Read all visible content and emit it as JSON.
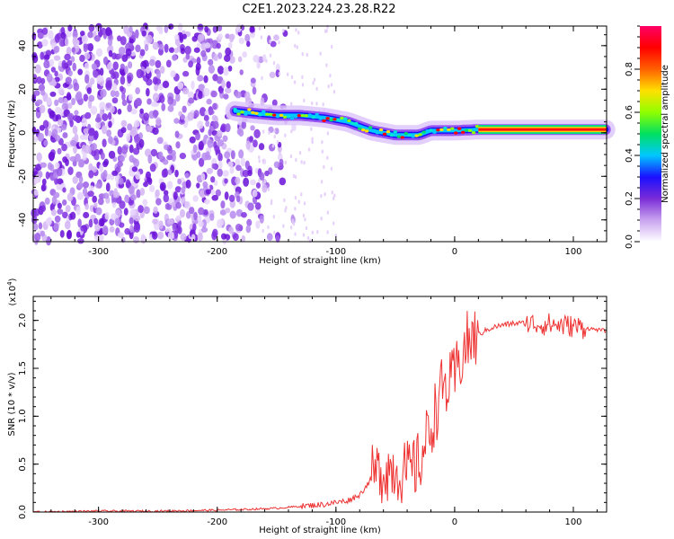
{
  "title": "C2E1.2023.224.23.28.R22",
  "chart_data": [
    {
      "type": "heatmap",
      "xlabel": "Height of straight line (km)",
      "ylabel": "Frequency (Hz)",
      "xlim": [
        -355,
        128
      ],
      "ylim": [
        -50,
        49
      ],
      "xticks": [
        -300,
        -200,
        -100,
        0,
        100
      ],
      "xtick_labels": [
        "-300",
        "-200",
        "-100",
        "0",
        "100"
      ],
      "yticks": [
        -40,
        -20,
        0,
        20,
        40
      ],
      "ytick_labels": [
        "-40",
        "-20",
        "0",
        "20",
        "40"
      ],
      "colorbar": {
        "label": "Normalized spectral amplitude",
        "range": [
          0,
          1
        ],
        "ticks": [
          0.0,
          0.2,
          0.4,
          0.6,
          0.8
        ],
        "tick_labels": [
          "0.0",
          "0.2",
          "0.4",
          "0.6",
          "0.8"
        ],
        "colors": [
          "#ffffff",
          "#c9a3f0",
          "#7a2bd6",
          "#1a10ff",
          "#00c8ff",
          "#00e060",
          "#90ff00",
          "#ffe000",
          "#ff6000",
          "#ff0000",
          "#ff0066"
        ]
      },
      "noise_region_x": [
        -355,
        -165
      ],
      "ridge_line": {
        "x": [
          -185,
          -170,
          -150,
          -130,
          -110,
          -100,
          -90,
          -80,
          -70,
          -60,
          -50,
          -40,
          -30,
          -20,
          -10,
          0,
          20,
          40,
          60,
          80,
          100,
          128
        ],
        "y": [
          10,
          9,
          8,
          8,
          7,
          6,
          5,
          3,
          1,
          0,
          -1,
          -1,
          -1,
          1,
          1,
          1,
          1.5,
          1.5,
          1.5,
          1.5,
          1.5,
          1.5
        ]
      }
    },
    {
      "type": "line",
      "xlabel": "Height of straight line (km)",
      "ylabel": "SNR (10 * v/v)",
      "multiplier_label": "(x10",
      "multiplier_exp": "4",
      "multiplier_close": ")",
      "color": "#ee3333",
      "xlim": [
        -355,
        128
      ],
      "ylim": [
        0,
        2.25
      ],
      "xticks": [
        -300,
        -200,
        -100,
        0,
        100
      ],
      "xtick_labels": [
        "-300",
        "-200",
        "-100",
        "0",
        "100"
      ],
      "yticks": [
        0.0,
        0.5,
        1.0,
        1.5,
        2.0
      ],
      "ytick_labels": [
        "0.0",
        "0.5",
        "1.0",
        "1.5",
        "2.0"
      ],
      "series": [
        {
          "x": [
            -355,
            -300,
            -250,
            -200,
            -170,
            -150,
            -130,
            -110,
            -100,
            -90,
            -80,
            -70,
            -60,
            -50,
            -40,
            -30,
            -20,
            -15,
            -10,
            -5,
            0,
            5,
            10,
            20,
            30,
            40,
            50,
            60,
            70,
            80,
            90,
            100,
            110,
            128
          ],
          "y": [
            0.0,
            0.01,
            0.01,
            0.02,
            0.03,
            0.04,
            0.06,
            0.08,
            0.1,
            0.12,
            0.18,
            0.35,
            0.45,
            0.45,
            0.4,
            0.5,
            0.9,
            1.1,
            1.3,
            1.3,
            1.4,
            1.6,
            1.75,
            1.85,
            1.92,
            1.95,
            1.97,
            1.97,
            1.96,
            1.96,
            1.95,
            1.94,
            1.92,
            1.89
          ]
        }
      ]
    }
  ]
}
